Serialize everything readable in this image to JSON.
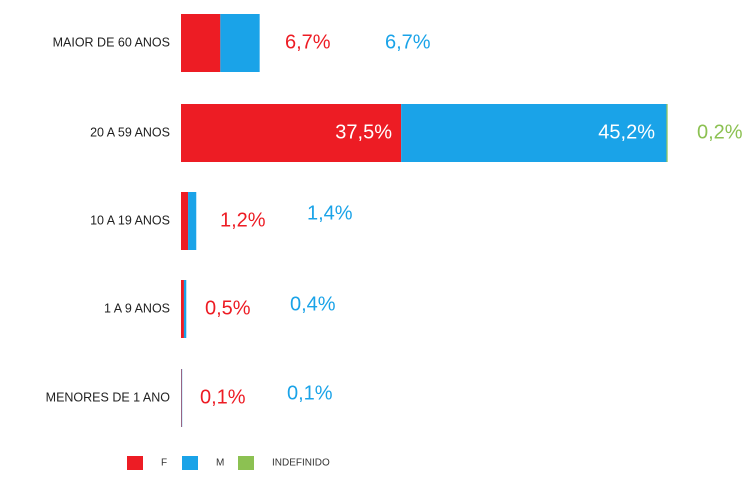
{
  "chart_data": {
    "type": "stacked-bar-horizontal",
    "categories": [
      "MAIOR DE 60 ANOS",
      "20 A 59 ANOS",
      "10 A 19 ANOS",
      "1 A 9 ANOS",
      "MENORES DE 1 ANO"
    ],
    "series": [
      {
        "name": "F",
        "color": "#ed1c24",
        "values": [
          6.7,
          37.5,
          1.2,
          0.5,
          0.1
        ],
        "value_labels": [
          "6,7%",
          "37,5%",
          "1,2%",
          "0,5%",
          "0,1%"
        ]
      },
      {
        "name": "M",
        "color": "#1aa3e8",
        "values": [
          6.7,
          45.2,
          1.4,
          0.4,
          0.1
        ],
        "value_labels": [
          "6,7%",
          "45,2%",
          "1,4%",
          "0,4%",
          "0,1%"
        ]
      },
      {
        "name": "INDEFINIDO",
        "color": "#8cc152",
        "values": [
          0,
          0.2,
          0,
          0,
          0
        ],
        "value_labels": [
          null,
          "0,2%",
          null,
          null,
          null
        ]
      }
    ],
    "legend": "bottom"
  }
}
